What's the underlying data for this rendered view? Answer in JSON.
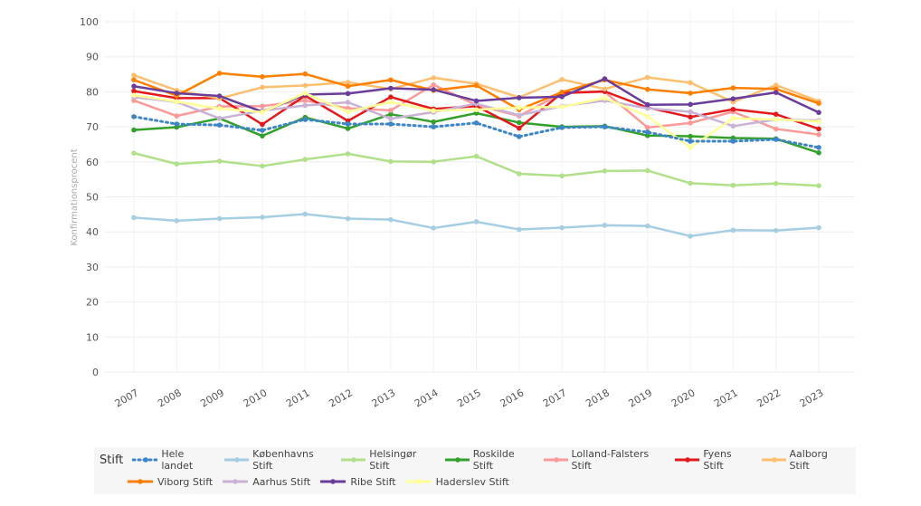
{
  "chart_data": {
    "type": "line",
    "title": "",
    "xlabel": "",
    "ylabel": "Konfirmationsprocent",
    "ylim": [
      0,
      100
    ],
    "yticks": [
      0,
      10,
      20,
      30,
      40,
      50,
      60,
      70,
      80,
      90,
      100
    ],
    "grid": true,
    "legend_title": "Stift",
    "legend_placement": "bottom",
    "x": [
      "2007",
      "2008",
      "2009",
      "2010",
      "2011",
      "2012",
      "2013",
      "2014",
      "2015",
      "2016",
      "2017",
      "2018",
      "2019",
      "2020",
      "2021",
      "2022",
      "2023"
    ],
    "series": [
      {
        "name": "Hele landet",
        "color": "#3d85c6",
        "dash": true,
        "values": [
          72.9,
          70.8,
          70.5,
          69,
          72.1,
          70.8,
          70.8,
          70,
          71.1,
          67.2,
          69.8,
          70,
          68.5,
          65.9,
          65.9,
          66.4,
          64.1
        ]
      },
      {
        "name": "Københavns Stift",
        "color": "#a6cee3",
        "values": [
          44.1,
          43.2,
          43.8,
          44.2,
          45.1,
          43.8,
          43.5,
          41.1,
          42.9,
          40.7,
          41.2,
          41.9,
          41.7,
          38.8,
          40.5,
          40.4,
          41.2
        ]
      },
      {
        "name": "Helsingør Stift",
        "color": "#b2df8a",
        "values": [
          62.5,
          59.4,
          60.2,
          58.8,
          60.7,
          62.3,
          60.1,
          60,
          61.6,
          56.6,
          56,
          57.4,
          57.5,
          53.9,
          53.3,
          53.8,
          53.2
        ]
      },
      {
        "name": "Roskilde Stift",
        "color": "#33a02c",
        "values": [
          69.1,
          69.9,
          72.4,
          67.4,
          72.7,
          69.5,
          73.6,
          71.4,
          73.9,
          71.2,
          70,
          70.2,
          67.5,
          67.3,
          66.8,
          66.6,
          62.6
        ]
      },
      {
        "name": "Lolland-Falsters Stift",
        "color": "#fb9a99",
        "values": [
          77.5,
          73.1,
          75.8,
          75.9,
          77.5,
          75.3,
          74.7,
          82,
          76.2,
          73.1,
          79.6,
          80,
          69.8,
          71.1,
          74.3,
          69.4,
          67.8
        ]
      },
      {
        "name": "Fyens Stift",
        "color": "#e31a1c",
        "values": [
          80.2,
          78.2,
          78.2,
          70.7,
          78.9,
          71.7,
          78.5,
          75.1,
          75.9,
          69.6,
          79.7,
          80.1,
          75.5,
          72.8,
          75,
          73.6,
          69.4
        ]
      },
      {
        "name": "Aalborg Stift",
        "color": "#fdbf6f",
        "values": [
          84.7,
          80.4,
          78.1,
          81.3,
          81.8,
          82.7,
          80.8,
          84,
          82.3,
          78.4,
          83.5,
          80.8,
          84.1,
          82.6,
          77.1,
          81.9,
          77.3
        ]
      },
      {
        "name": "Viborg Stift",
        "color": "#ff7f00",
        "values": [
          83.4,
          78.9,
          85.3,
          84.3,
          85.1,
          81.6,
          83.4,
          80.4,
          81.8,
          74.9,
          79.9,
          83.4,
          80.7,
          79.6,
          81.1,
          80.8,
          76.7
        ]
      },
      {
        "name": "Aarhus Stift",
        "color": "#cab2d6",
        "values": [
          78.5,
          77.1,
          72.4,
          74.6,
          76.1,
          77,
          72.3,
          74.2,
          76.6,
          73.3,
          75.9,
          77.5,
          75.3,
          74.3,
          70.2,
          72.1,
          71.8
        ]
      },
      {
        "name": "Ribe Stift",
        "color": "#6a3d9a",
        "values": [
          81.6,
          79.6,
          78.8,
          74.3,
          79.2,
          79.5,
          81,
          80.6,
          77.4,
          78.3,
          78.6,
          83.7,
          76.3,
          76.4,
          78,
          79.8,
          74.1
        ]
      },
      {
        "name": "Haderslev Stift",
        "color": "#ffff99",
        "values": [
          79,
          77.2,
          75.2,
          74.2,
          79.6,
          74.3,
          77.1,
          74.6,
          74.9,
          75.5,
          75.7,
          78.2,
          73,
          64.1,
          72.4,
          72.1,
          71.5
        ]
      }
    ]
  }
}
